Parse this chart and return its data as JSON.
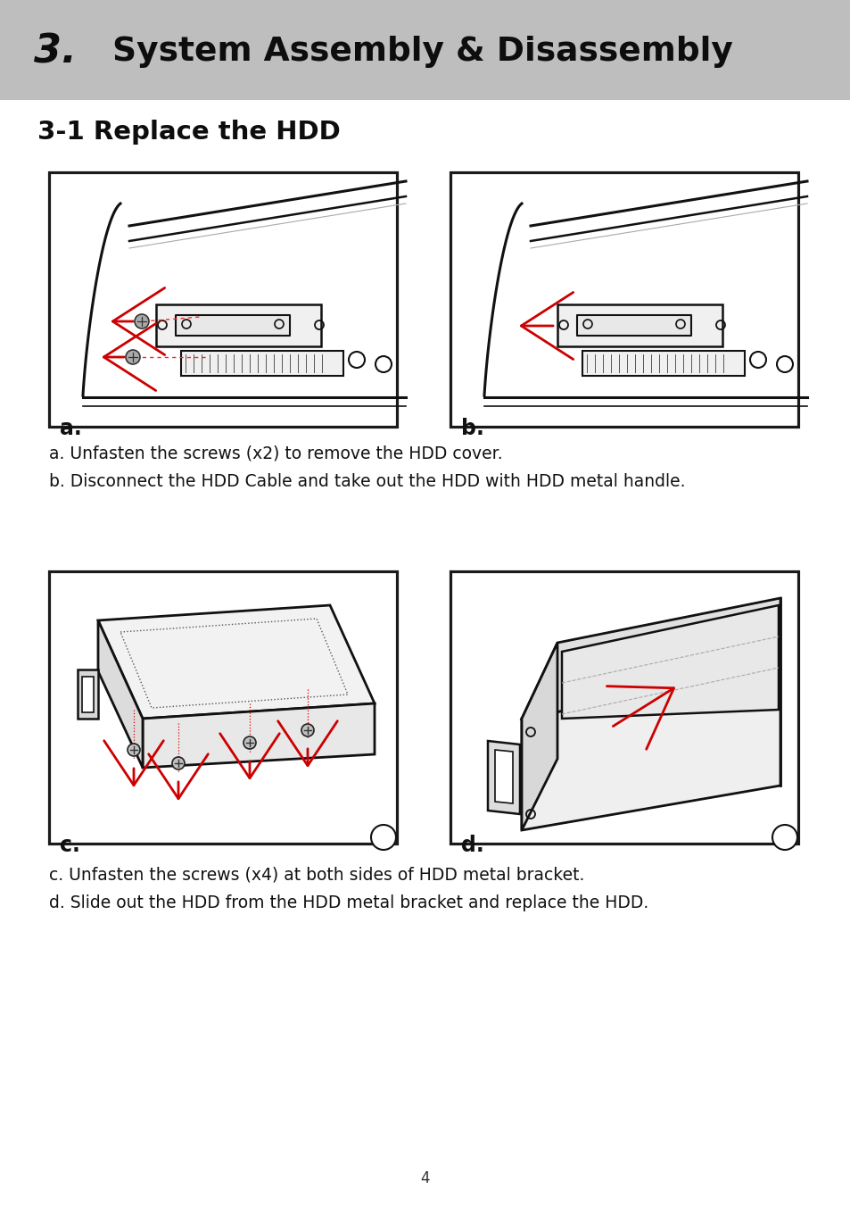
{
  "header_bg_color": "#bebebe",
  "page_bg_color": "#ffffff",
  "header_text_num": "3.",
  "header_text_rest": "  System Assembly & Disassembly",
  "section_title": "3-1 Replace the HDD",
  "caption_a": "a. Unfasten the screws (x2) to remove the HDD cover.",
  "caption_b": "b. Disconnect the HDD Cable and take out the HDD with HDD metal handle.",
  "caption_c": "c. Unfasten the screws (x4) at both sides of HDD metal bracket.",
  "caption_d": "d. Slide out the HDD from the HDD metal bracket and replace the HDD.",
  "footer_page": "4",
  "box_border_color": "#1a1a1a",
  "label_a": "a.",
  "label_b": "b.",
  "label_c": "c.",
  "label_d": "d.",
  "arrow_yellow": "#f5a800",
  "arrow_red": "#cc0000",
  "line_dark": "#111111",
  "line_mid": "#555555",
  "line_light": "#aaaaaa"
}
